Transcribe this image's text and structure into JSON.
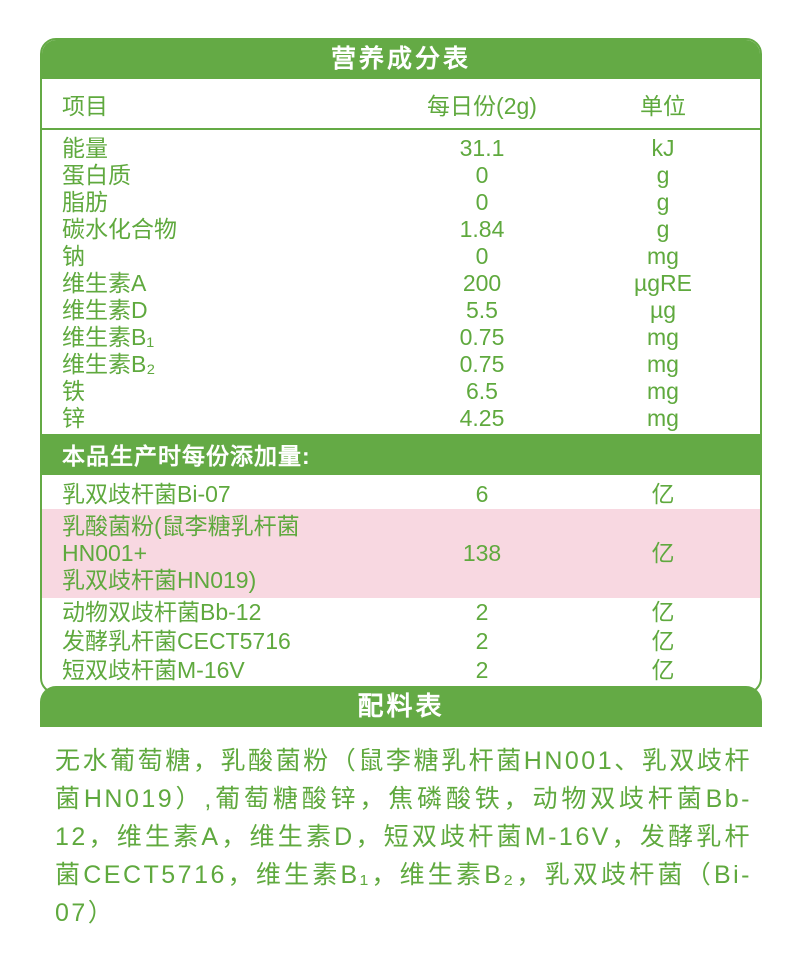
{
  "colors": {
    "green": "#64aa45",
    "text_green": "#5fa93e",
    "pink": "#f8d8e1",
    "band_text": "#ffffff"
  },
  "nutrition_table": {
    "title": "营养成分表",
    "columns": {
      "item": "项目",
      "per_serving": "每日份(2g)",
      "unit": "单位"
    },
    "rows": [
      {
        "name": "能量",
        "value": "31.1",
        "unit": "kJ"
      },
      {
        "name": "蛋白质",
        "value": "0",
        "unit": "g"
      },
      {
        "name": "脂肪",
        "value": "0",
        "unit": "g"
      },
      {
        "name": "碳水化合物",
        "value": "1.84",
        "unit": "g"
      },
      {
        "name": "钠",
        "value": "0",
        "unit": "mg"
      },
      {
        "name": "维生素A",
        "value": "200",
        "unit": "µgRE"
      },
      {
        "name": "维生素D",
        "value": "5.5",
        "unit": "µg"
      },
      {
        "name": "维生素B₁",
        "value": "0.75",
        "unit": "mg"
      },
      {
        "name": "维生素B₂",
        "value": "0.75",
        "unit": "mg"
      },
      {
        "name": "铁",
        "value": "6.5",
        "unit": "mg"
      },
      {
        "name": "锌",
        "value": "4.25",
        "unit": "mg"
      }
    ],
    "additives_note": "本品生产时每份添加量:",
    "additive_rows": [
      {
        "name": "乳双歧杆菌Bi-07",
        "value": "6",
        "unit": "亿"
      },
      {
        "name_line1": "乳酸菌粉(鼠李糖乳杆菌HN001+",
        "name_line2": "乳双歧杆菌HN019)",
        "value": "138",
        "unit": "亿",
        "highlighted": true
      },
      {
        "name": "动物双歧杆菌Bb-12",
        "value": "2",
        "unit": "亿"
      },
      {
        "name": "发酵乳杆菌CECT5716",
        "value": "2",
        "unit": "亿"
      },
      {
        "name": "短双歧杆菌M-16V",
        "value": "2",
        "unit": "亿"
      }
    ]
  },
  "ingredients": {
    "title": "配料表",
    "text": "无水葡萄糖，乳酸菌粉（鼠李糖乳杆菌HN001、乳双歧杆菌HN019）,葡萄糖酸锌，焦磷酸铁，动物双歧杆菌Bb-12，维生素A，维生素D，短双歧杆菌M-16V，发酵乳杆菌CECT5716，维生素B₁，维生素B₂，乳双歧杆菌（Bi-07）"
  }
}
